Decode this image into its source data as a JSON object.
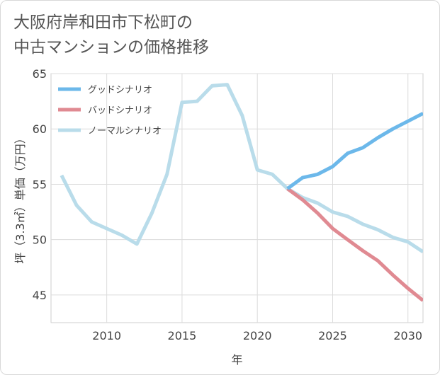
{
  "title_line1": "大阪府岸和田市下松町の",
  "title_line2": "中古マンションの価格推移",
  "chart_data": {
    "type": "line",
    "title": "大阪府岸和田市下松町の中古マンションの価格推移",
    "xlabel": "年",
    "ylabel": "坪（3.3㎡）単価（万円）",
    "xlim": [
      2006.3,
      2031
    ],
    "ylim": [
      42.5,
      65
    ],
    "xticks": [
      2010,
      2015,
      2020,
      2025,
      2030
    ],
    "yticks": [
      45,
      50,
      55,
      60,
      65
    ],
    "grid": true,
    "legend_position": "top-left",
    "series": [
      {
        "name": "グッドシナリオ",
        "color": "#6cb8ea",
        "x": [
          2022,
          2023,
          2024,
          2025,
          2026,
          2027,
          2028,
          2029,
          2030,
          2031
        ],
        "y": [
          54.6,
          55.6,
          55.9,
          56.6,
          57.8,
          58.3,
          59.2,
          60.0,
          60.7,
          61.4
        ]
      },
      {
        "name": "バッドシナリオ",
        "color": "#e08a92",
        "x": [
          2022,
          2023,
          2024,
          2025,
          2026,
          2027,
          2028,
          2029,
          2030,
          2031
        ],
        "y": [
          54.6,
          53.6,
          52.4,
          51.0,
          50.0,
          49.0,
          48.1,
          46.8,
          45.6,
          44.5
        ]
      },
      {
        "name": "ノーマルシナリオ",
        "color": "#b9dcea",
        "x": [
          2007,
          2008,
          2009,
          2010,
          2011,
          2012,
          2013,
          2014,
          2015,
          2016,
          2017,
          2018,
          2019,
          2020,
          2021,
          2022,
          2023,
          2024,
          2025,
          2026,
          2027,
          2028,
          2029,
          2030,
          2031
        ],
        "y": [
          55.8,
          53.1,
          51.6,
          51.0,
          50.4,
          49.6,
          52.4,
          55.9,
          62.4,
          62.5,
          63.9,
          64.0,
          61.2,
          56.3,
          55.9,
          54.6,
          53.8,
          53.3,
          52.5,
          52.1,
          51.4,
          50.9,
          50.2,
          49.8,
          48.9
        ]
      }
    ]
  }
}
